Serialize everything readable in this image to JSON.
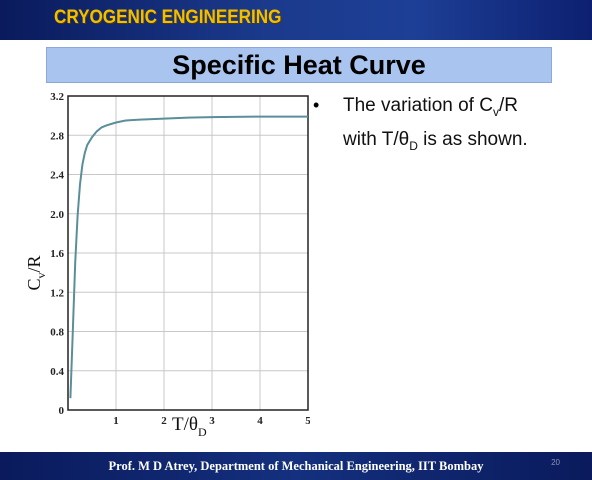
{
  "header": {
    "course_title": "CRYOGENIC ENGINEERING"
  },
  "slide": {
    "title": "Specific Heat Curve",
    "bullet": "•",
    "bullet_text_line1": "The variation of C",
    "bullet_text_sub1": "v",
    "bullet_text_mid1": "/R",
    "bullet_text_line2": "with T/θ",
    "bullet_text_sub2": "D",
    "bullet_text_end2": " is as shown."
  },
  "footer": {
    "credit": "Prof. M D Atrey, Department of Mechanical Engineering, IIT Bombay",
    "page_number": "20"
  },
  "colors": {
    "header_bg": "#0a1a5c",
    "course_title": "#f0c000",
    "title_box": "#a9c4ee",
    "curve": "#5a8f9a",
    "footer_bg": "#0a1a5c"
  },
  "chart_data": {
    "type": "line",
    "title": "",
    "xlabel_main": "T/θ",
    "xlabel_sub": "D",
    "ylabel_main": "C",
    "ylabel_sub": "v",
    "ylabel_tail": "/R",
    "xlim": [
      0,
      5
    ],
    "ylim": [
      0,
      3.2
    ],
    "grid": true,
    "x_ticks": [
      "1",
      "2",
      "3",
      "4",
      "5"
    ],
    "y_ticks": [
      "0",
      "0.4",
      "0.8",
      "1.2",
      "1.6",
      "2.0",
      "2.4",
      "2.8",
      "3.2"
    ],
    "series": [
      {
        "x": [
          0.05,
          0.1,
          0.15,
          0.2,
          0.25,
          0.3,
          0.35,
          0.4,
          0.5,
          0.6,
          0.7,
          0.8,
          1.0,
          1.2,
          1.5,
          2.0,
          2.5,
          3.0,
          4.0,
          5.0
        ],
        "y": [
          0.12,
          0.8,
          1.5,
          1.98,
          2.3,
          2.5,
          2.62,
          2.7,
          2.78,
          2.84,
          2.88,
          2.9,
          2.93,
          2.95,
          2.96,
          2.97,
          2.98,
          2.985,
          2.99,
          2.99
        ]
      }
    ]
  }
}
